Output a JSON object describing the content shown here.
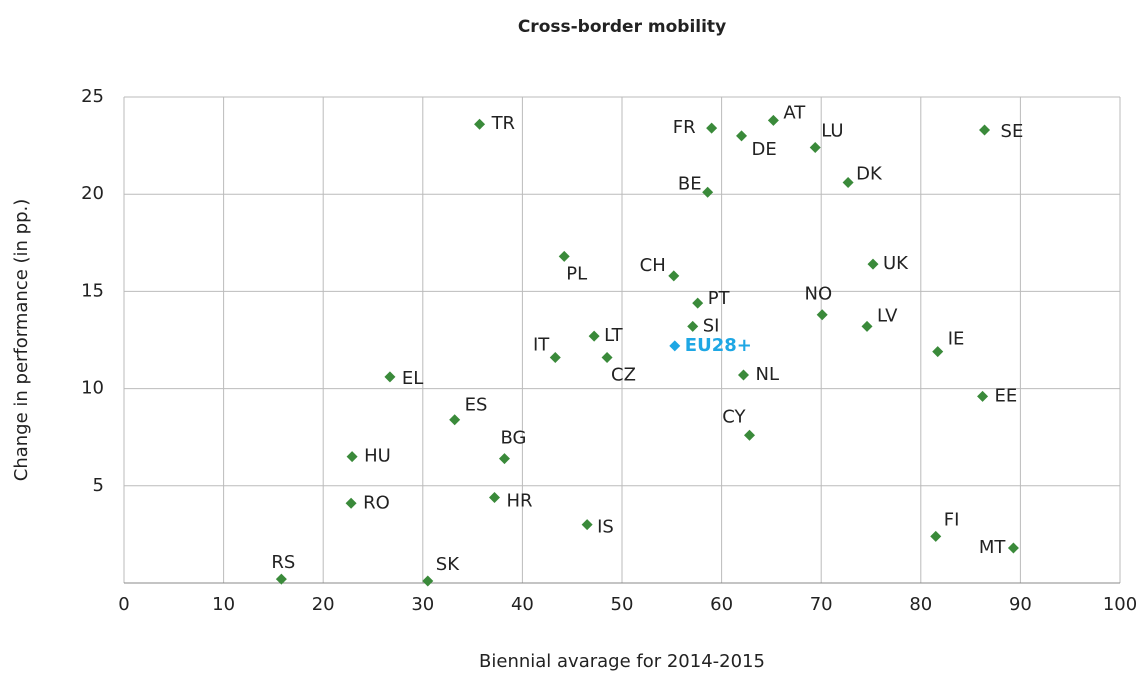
{
  "chart_data": {
    "type": "scatter",
    "title": "Cross-border mobility",
    "x_label": "Biennial avarage for 2014-2015",
    "y_label": "Change in performance (in pp.)",
    "labels": [
      "TR",
      "FR",
      "DE",
      "AT",
      "LU",
      "SE",
      "BE",
      "DK",
      "PL",
      "CH",
      "UK",
      "PT",
      "NO",
      "LV",
      "SI",
      "LT",
      "EU28+",
      "IT",
      "CZ",
      "IE",
      "EL",
      "NL",
      "EE",
      "ES",
      "CY",
      "HU",
      "BG",
      "RO",
      "HR",
      "IS",
      "FI",
      "MT",
      "RS",
      "SK"
    ],
    "x": [
      35.7,
      59.0,
      62.0,
      65.2,
      69.4,
      86.4,
      58.6,
      72.7,
      44.2,
      55.2,
      75.2,
      57.6,
      70.1,
      74.6,
      57.1,
      47.2,
      55.3,
      43.3,
      48.5,
      81.7,
      26.7,
      62.2,
      86.2,
      33.2,
      62.8,
      22.9,
      38.2,
      22.8,
      37.2,
      46.5,
      81.5,
      89.3,
      15.8,
      30.5
    ],
    "values": [
      23.6,
      23.4,
      23.0,
      23.8,
      22.4,
      23.3,
      20.1,
      20.6,
      16.8,
      15.8,
      16.4,
      14.4,
      13.8,
      13.2,
      13.2,
      12.7,
      12.2,
      11.6,
      11.6,
      11.9,
      10.6,
      10.7,
      9.6,
      8.4,
      7.6,
      6.5,
      6.4,
      4.1,
      4.4,
      3.0,
      2.4,
      1.8,
      0.2,
      0.1
    ],
    "colors": [
      "#3a8a3a",
      "#3a8a3a",
      "#3a8a3a",
      "#3a8a3a",
      "#3a8a3a",
      "#3a8a3a",
      "#3a8a3a",
      "#3a8a3a",
      "#3a8a3a",
      "#3a8a3a",
      "#3a8a3a",
      "#3a8a3a",
      "#3a8a3a",
      "#3a8a3a",
      "#3a8a3a",
      "#3a8a3a",
      "#1ea7e4",
      "#3a8a3a",
      "#3a8a3a",
      "#3a8a3a",
      "#3a8a3a",
      "#3a8a3a",
      "#3a8a3a",
      "#3a8a3a",
      "#3a8a3a",
      "#3a8a3a",
      "#3a8a3a",
      "#3a8a3a",
      "#3a8a3a",
      "#3a8a3a",
      "#3a8a3a",
      "#3a8a3a",
      "#3a8a3a",
      "#3a8a3a"
    ],
    "xlim": [
      0,
      100
    ],
    "xticks": [
      0,
      10,
      20,
      30,
      40,
      50,
      60,
      70,
      80,
      90,
      100
    ],
    "ylim": [
      0,
      25
    ],
    "yticks": [
      5,
      10,
      15,
      20,
      25
    ],
    "grid": true
  }
}
